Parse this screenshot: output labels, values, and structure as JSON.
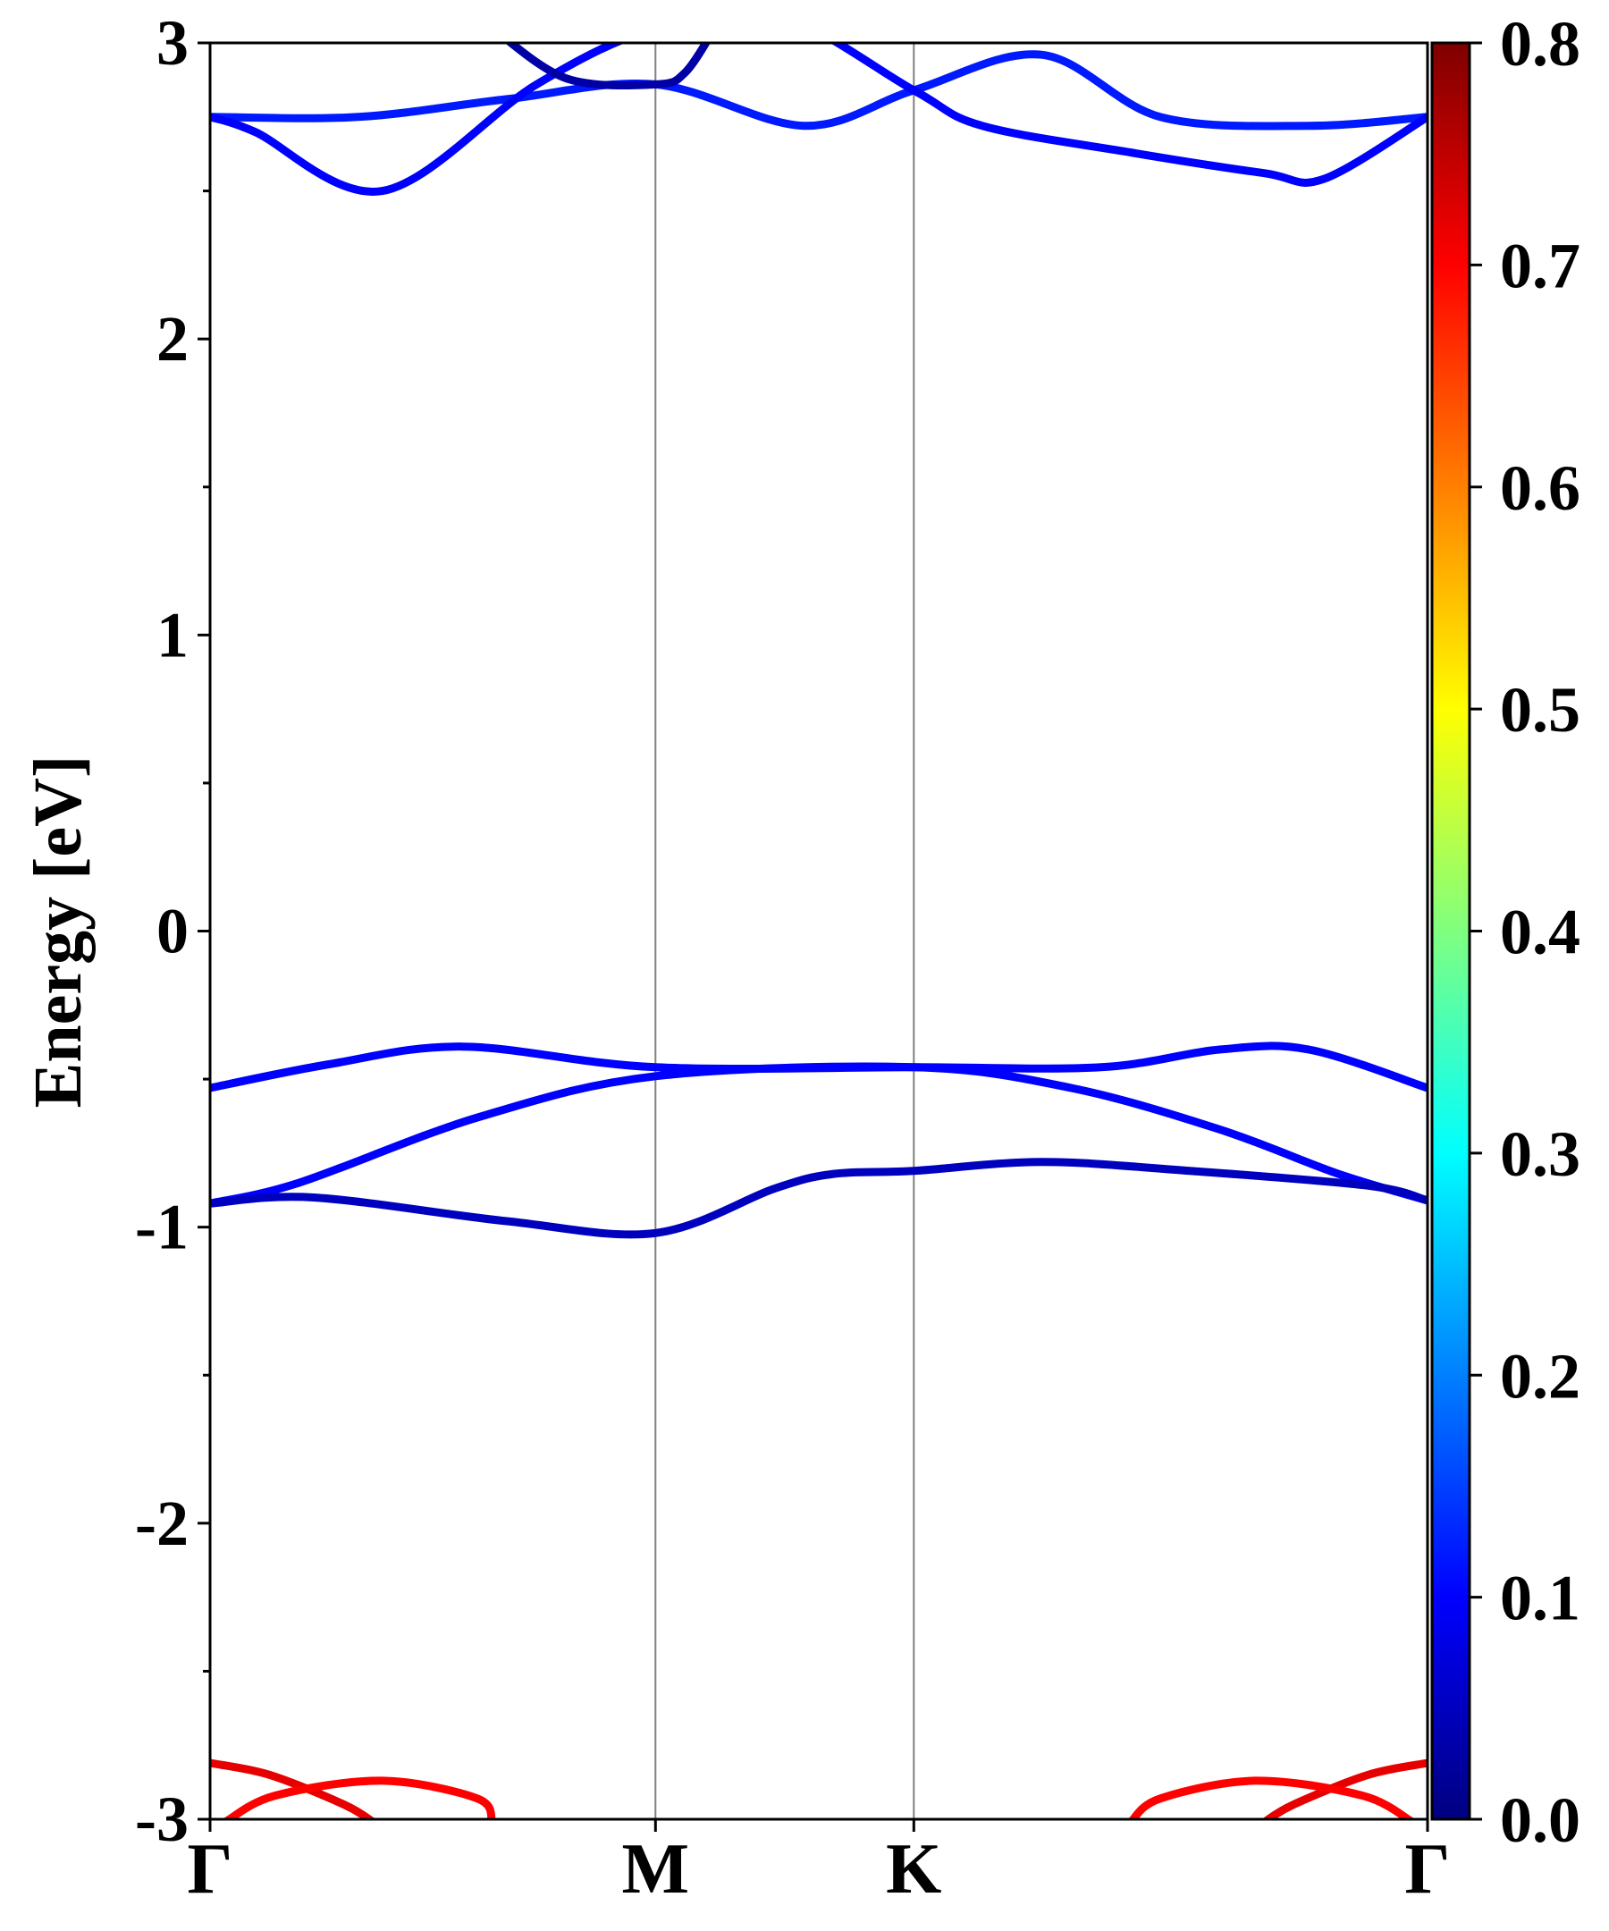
{
  "chart_data": {
    "type": "line",
    "ylabel": "Energy [eV]",
    "xlabel": "",
    "ylim": [
      -3,
      3
    ],
    "yticks": [
      "-3",
      "-2",
      "-1",
      "0",
      "1",
      "2",
      "3"
    ],
    "xticks": [
      {
        "label": "Γ",
        "k": 0
      },
      {
        "label": "M",
        "k": 1.5
      },
      {
        "label": "K",
        "k": 2.37
      },
      {
        "label": "Γ",
        "k": 4.1
      }
    ],
    "grid": "vertical lines at high-symmetry points",
    "colorbar": {
      "colormap": "jet",
      "range": [
        0,
        0.8
      ],
      "ticks": [
        "0.0",
        "0.1",
        "0.2",
        "0.3",
        "0.4",
        "0.5",
        "0.6",
        "0.7",
        "0.8"
      ]
    },
    "series": [
      {
        "weight": 0.12,
        "points": [
          [
            0,
            2.75
          ],
          [
            0.5,
            2.75
          ],
          [
            1.0,
            2.81
          ],
          [
            1.5,
            2.86
          ],
          [
            2.0,
            2.72
          ],
          [
            2.37,
            2.84
          ],
          [
            2.8,
            2.96
          ],
          [
            3.2,
            2.75
          ],
          [
            3.7,
            2.72
          ],
          [
            4.1,
            2.75
          ]
        ]
      },
      {
        "weight": 0.1,
        "points": [
          [
            0,
            2.75
          ],
          [
            0.15,
            2.7
          ],
          [
            0.58,
            2.5
          ],
          [
            1.1,
            2.86
          ],
          [
            1.5,
            3.05
          ],
          [
            1.9,
            3.1
          ],
          [
            2.37,
            2.84
          ],
          [
            2.6,
            2.72
          ],
          [
            3.1,
            2.63
          ],
          [
            3.55,
            2.56
          ],
          [
            3.75,
            2.54
          ],
          [
            4.1,
            2.75
          ]
        ]
      },
      {
        "weight": 0.03,
        "points": [
          [
            0.95,
            3.05
          ],
          [
            1.2,
            2.88
          ],
          [
            1.5,
            2.86
          ],
          [
            1.6,
            2.9
          ],
          [
            1.7,
            3.05
          ]
        ]
      },
      {
        "weight": 0.1,
        "points": [
          [
            0,
            -0.53
          ],
          [
            0.4,
            -0.45
          ],
          [
            0.85,
            -0.39
          ],
          [
            1.5,
            -0.46
          ],
          [
            2.37,
            -0.46
          ],
          [
            3.0,
            -0.46
          ],
          [
            3.4,
            -0.4
          ],
          [
            3.7,
            -0.4
          ],
          [
            4.1,
            -0.53
          ]
        ]
      },
      {
        "weight": 0.1,
        "points": [
          [
            0,
            -0.92
          ],
          [
            0.3,
            -0.85
          ],
          [
            0.9,
            -0.63
          ],
          [
            1.5,
            -0.49
          ],
          [
            2.37,
            -0.46
          ],
          [
            2.9,
            -0.53
          ],
          [
            3.4,
            -0.67
          ],
          [
            3.8,
            -0.82
          ],
          [
            4.1,
            -0.91
          ]
        ]
      },
      {
        "weight": 0.05,
        "points": [
          [
            0,
            -0.92
          ],
          [
            0.35,
            -0.9
          ],
          [
            1.0,
            -0.98
          ],
          [
            1.5,
            -1.02
          ],
          [
            1.9,
            -0.87
          ],
          [
            2.1,
            -0.82
          ],
          [
            2.37,
            -0.81
          ],
          [
            2.8,
            -0.78
          ],
          [
            3.3,
            -0.81
          ],
          [
            3.9,
            -0.86
          ],
          [
            4.1,
            -0.91
          ]
        ]
      },
      {
        "weight": 0.72,
        "points": [
          [
            0,
            -2.81
          ],
          [
            0.2,
            -2.85
          ],
          [
            0.45,
            -2.95
          ],
          [
            0.55,
            -3.01
          ]
        ]
      },
      {
        "weight": 0.7,
        "points": [
          [
            0.05,
            -3.01
          ],
          [
            0.22,
            -2.92
          ],
          [
            0.58,
            -2.87
          ],
          [
            0.9,
            -2.93
          ],
          [
            0.95,
            -3.01
          ]
        ]
      },
      {
        "weight": 0.72,
        "points": [
          [
            4.1,
            -2.81
          ],
          [
            3.9,
            -2.85
          ],
          [
            3.65,
            -2.95
          ],
          [
            3.55,
            -3.01
          ]
        ]
      },
      {
        "weight": 0.7,
        "points": [
          [
            4.05,
            -3.01
          ],
          [
            3.88,
            -2.92
          ],
          [
            3.52,
            -2.87
          ],
          [
            3.2,
            -2.93
          ],
          [
            3.1,
            -3.01
          ]
        ]
      }
    ]
  }
}
